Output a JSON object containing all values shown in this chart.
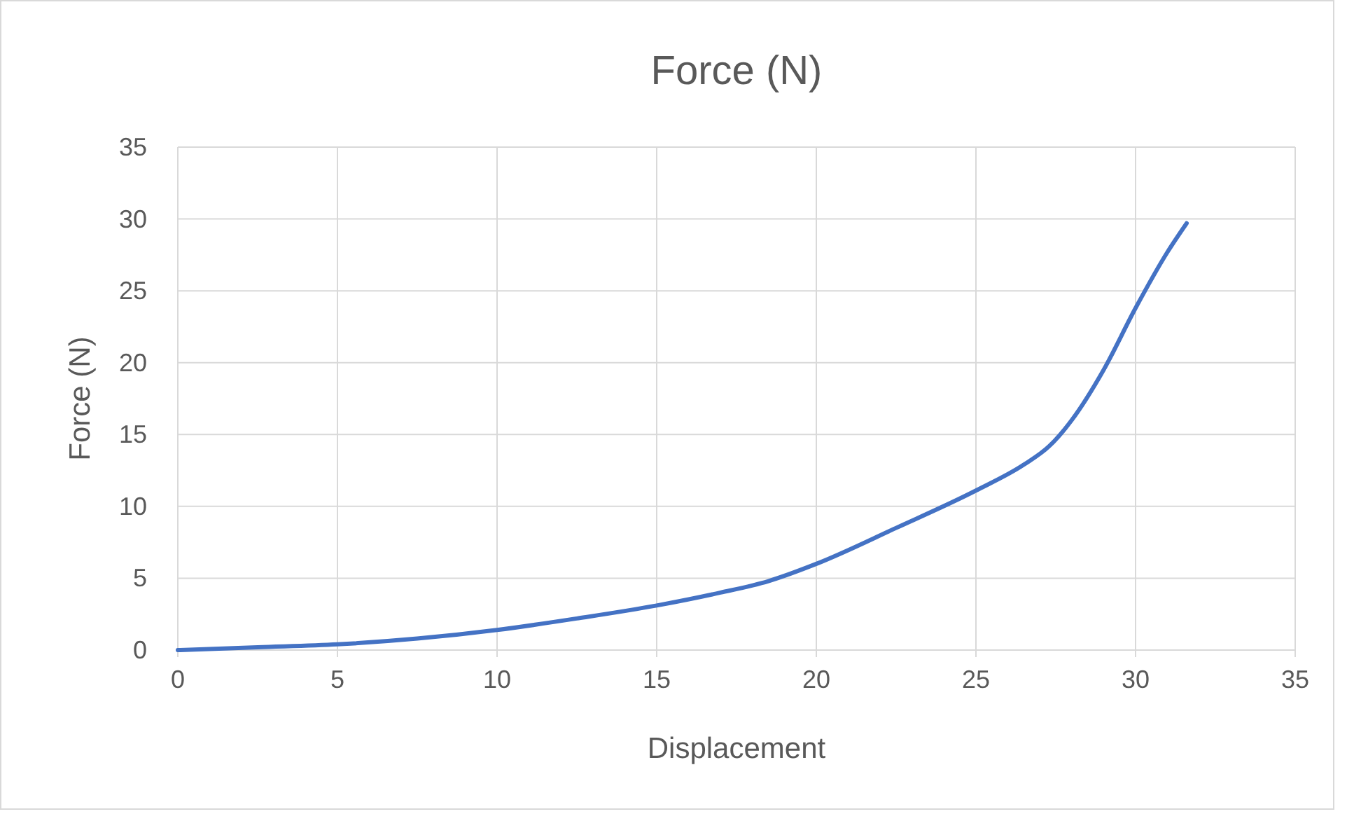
{
  "chart_data": {
    "type": "line",
    "title": "Force (N)",
    "xlabel": "Displacement",
    "ylabel": "Force (N)",
    "x": [
      0,
      2.5,
      5,
      7.5,
      10,
      12.5,
      15,
      17,
      18.5,
      20,
      22.5,
      25,
      26.5,
      27.3,
      28,
      29,
      30,
      31,
      31.6
    ],
    "series": [
      {
        "color": "#4472c4",
        "values": [
          0,
          0.2,
          0.4,
          0.8,
          1.4,
          2.2,
          3.1,
          4.0,
          4.8,
          6.0,
          8.5,
          11.1,
          12.9,
          14.2,
          16.0,
          19.5,
          23.8,
          27.7,
          29.7
        ]
      }
    ],
    "xlim": [
      0,
      35
    ],
    "ylim": [
      0,
      35
    ],
    "xticks": [
      0,
      5,
      10,
      15,
      20,
      25,
      30,
      35
    ],
    "yticks": [
      0,
      5,
      10,
      15,
      20,
      25,
      30,
      35
    ],
    "grid": true,
    "marker": "none",
    "line_style": "solid"
  }
}
